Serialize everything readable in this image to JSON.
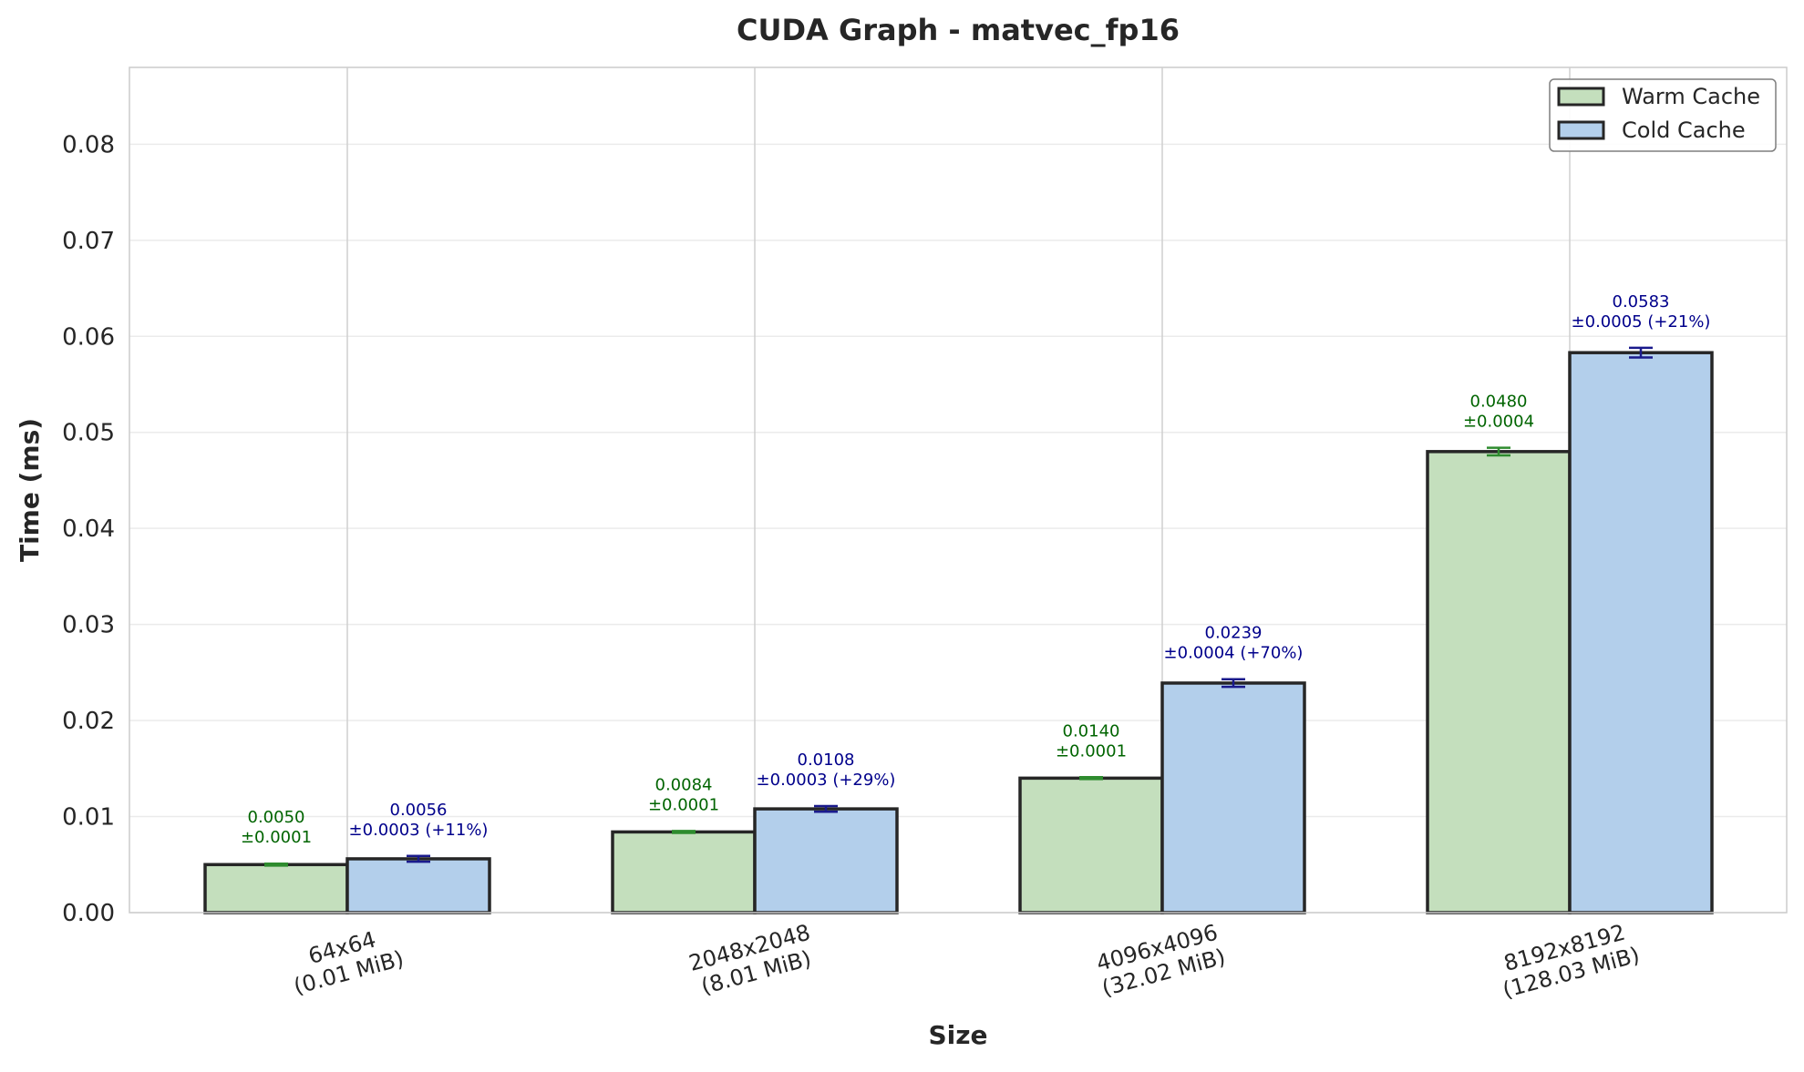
{
  "chart_data": {
    "type": "bar",
    "title": "CUDA Graph - matvec_fp16",
    "xlabel": "Size",
    "ylabel": "Time (ms)",
    "categories": [
      [
        "64x64",
        "(0.01 MiB)"
      ],
      [
        "2048x2048",
        "(8.01 MiB)"
      ],
      [
        "4096x4096",
        "(32.02 MiB)"
      ],
      [
        "8192x8192",
        "(128.03 MiB)"
      ]
    ],
    "ylim": [
      0,
      0.088
    ],
    "yticks": [
      "0.00",
      "0.01",
      "0.02",
      "0.03",
      "0.04",
      "0.05",
      "0.06",
      "0.07",
      "0.08"
    ],
    "ytick_values": [
      0,
      0.01,
      0.02,
      0.03,
      0.04,
      0.05,
      0.06,
      0.07,
      0.08
    ],
    "grid": true,
    "legend_position": "top-right",
    "series": [
      {
        "name": "Warm Cache",
        "color": "#c4dfbd",
        "label_color": "#006400",
        "errbar_color": "#2e8b2e",
        "values": [
          0.005,
          0.0084,
          0.014,
          0.048
        ],
        "errors": [
          0.0001,
          0.0001,
          0.0001,
          0.0004
        ],
        "labels": [
          [
            "0.0050",
            "±0.0001"
          ],
          [
            "0.0084",
            "±0.0001"
          ],
          [
            "0.0140",
            "±0.0001"
          ],
          [
            "0.0480",
            "±0.0004"
          ]
        ]
      },
      {
        "name": "Cold Cache",
        "color": "#b3cfeb",
        "label_color": "#00008b",
        "errbar_color": "#1a1a8c",
        "values": [
          0.0056,
          0.0108,
          0.0239,
          0.0583
        ],
        "errors": [
          0.0003,
          0.0003,
          0.0004,
          0.0005
        ],
        "labels": [
          [
            "0.0056",
            "±0.0003 (+11%)"
          ],
          [
            "0.0108",
            "±0.0003 (+29%)"
          ],
          [
            "0.0239",
            "±0.0004 (+70%)"
          ],
          [
            "0.0583",
            "±0.0005 (+21%)"
          ]
        ]
      }
    ]
  }
}
